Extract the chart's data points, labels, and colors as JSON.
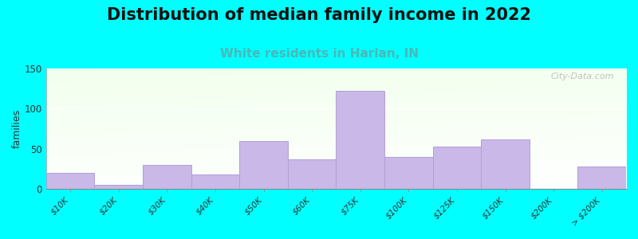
{
  "title": "Distribution of median family income in 2022",
  "subtitle": "White residents in Harlan, IN",
  "ylabel": "families",
  "categories": [
    "$10K",
    "$20K",
    "$30K",
    "$40K",
    "$50K",
    "$60K",
    "$75K",
    "$100K",
    "$125K",
    "$150K",
    "$200K",
    "> $200K"
  ],
  "values": [
    20,
    5,
    30,
    18,
    60,
    37,
    122,
    40,
    53,
    62,
    0,
    28
  ],
  "bar_color": "#c9b8e8",
  "bar_edge_color": "#b0a0d8",
  "background_color": "#00ffff",
  "ylim": [
    0,
    150
  ],
  "yticks": [
    0,
    50,
    100,
    150
  ],
  "title_fontsize": 15,
  "subtitle_fontsize": 11,
  "subtitle_color": "#4ab8b8",
  "ylabel_fontsize": 9,
  "watermark": "City-Data.com"
}
